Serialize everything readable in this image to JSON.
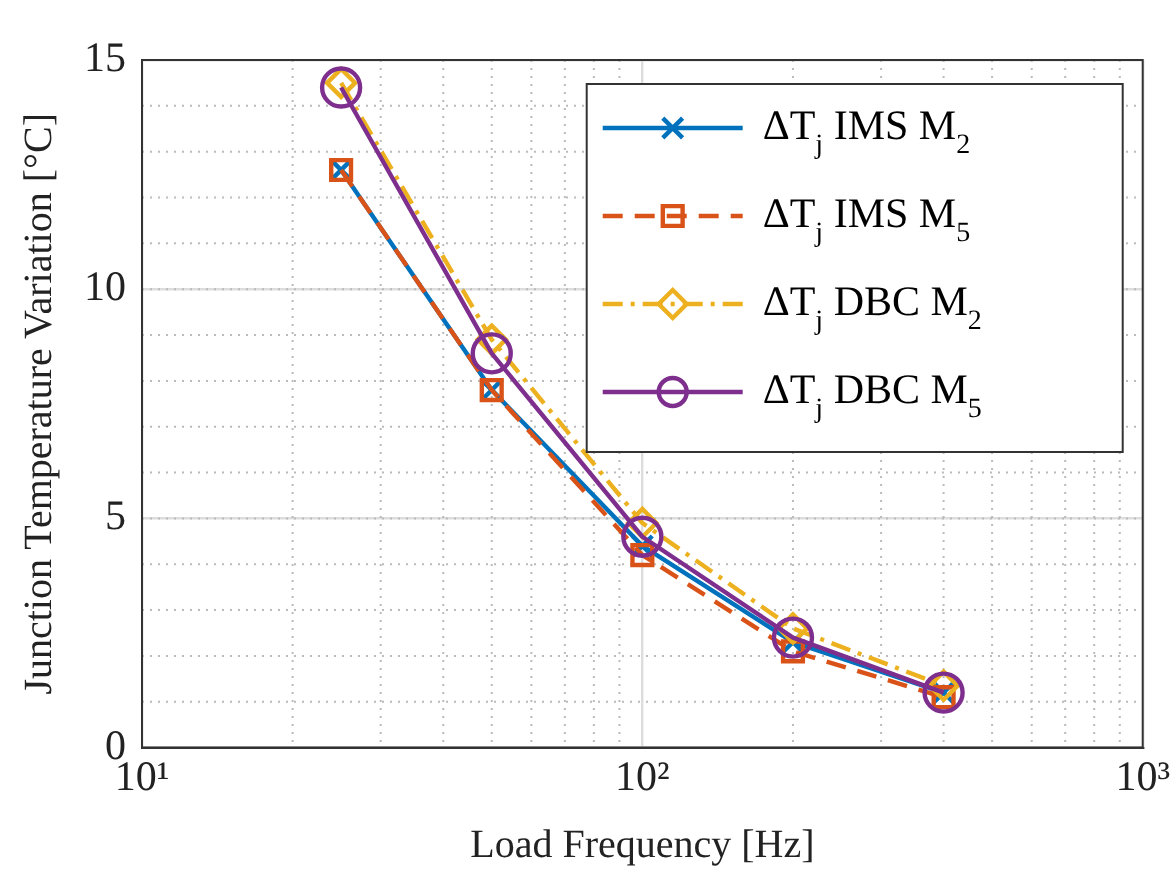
{
  "chart_data": {
    "type": "line",
    "xlabel": "Load Frequency [Hz]",
    "ylabel": "Junction Temperature Variation [°C]",
    "log": "x",
    "xlim": [
      10,
      1000
    ],
    "xticks": [
      {
        "value": 10,
        "label": "10¹"
      },
      {
        "value": 100,
        "label": "10²"
      },
      {
        "value": 1000,
        "label": "10³"
      }
    ],
    "ylim": [
      0,
      15
    ],
    "yticks": [
      0,
      5,
      10,
      15
    ],
    "grid": true,
    "legend": "top right",
    "x": [
      25,
      50,
      100,
      200,
      400
    ],
    "series": [
      {
        "name": "ΔT$_{j}$ IMS M$_{2}$",
        "color": "#0072bd",
        "values": [
          12.6,
          7.8,
          4.4,
          2.3,
          1.2
        ],
        "marker": "cross",
        "line_style": "solid"
      },
      {
        "name": "ΔT$_{j}$ IMS M$_{5}$",
        "color": "#d95319",
        "values": [
          12.6,
          7.8,
          4.2,
          2.1,
          1.1
        ],
        "marker": "square",
        "line_style": "dashed"
      },
      {
        "name": "ΔT$_{j}$ DBC M$_{2}$",
        "color": "#edb120",
        "values": [
          14.5,
          8.9,
          4.9,
          2.6,
          1.35
        ],
        "marker": "diamond",
        "line_style": "dashdot"
      },
      {
        "name": "ΔT$_{j}$ DBC M$_{5}$",
        "color": "#7e2f8e",
        "values": [
          14.4,
          8.6,
          4.6,
          2.4,
          1.2
        ],
        "marker": "circle",
        "line_style": "solid"
      }
    ]
  }
}
